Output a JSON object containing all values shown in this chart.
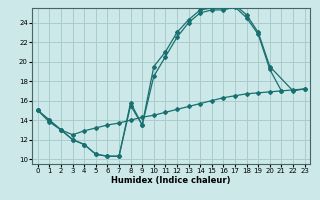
{
  "xlabel": "Humidex (Indice chaleur)",
  "bg_color": "#cce8e8",
  "grid_color": "#aacccc",
  "line_color": "#1a7070",
  "xlim": [
    -0.5,
    23.5
  ],
  "ylim": [
    9.5,
    25.5
  ],
  "xticks": [
    0,
    1,
    2,
    3,
    4,
    5,
    6,
    7,
    8,
    9,
    10,
    11,
    12,
    13,
    14,
    15,
    16,
    17,
    18,
    19,
    20,
    21,
    22,
    23
  ],
  "yticks": [
    10,
    12,
    14,
    16,
    18,
    20,
    22,
    24
  ],
  "series": [
    {
      "x": [
        0,
        1,
        2,
        3,
        4,
        5,
        6,
        7,
        8,
        9,
        10,
        11,
        12,
        13,
        14,
        15,
        16,
        17,
        18,
        19,
        20,
        22,
        23
      ],
      "y": [
        15,
        14,
        13,
        12,
        11.5,
        10.5,
        10.3,
        10.3,
        15.5,
        13.5,
        19.5,
        21.0,
        23.0,
        24.3,
        25.3,
        25.5,
        25.5,
        25.8,
        24.8,
        23.0,
        19.5,
        17.0,
        17.2
      ]
    },
    {
      "x": [
        0,
        1,
        2,
        3,
        4,
        5,
        6,
        7,
        8,
        9,
        10,
        11,
        12,
        13,
        14,
        15,
        16,
        17,
        18,
        19,
        20,
        21
      ],
      "y": [
        15,
        14,
        13,
        12,
        11.5,
        10.5,
        10.3,
        10.3,
        15.8,
        13.5,
        18.5,
        20.5,
        22.5,
        24.0,
        25.0,
        25.3,
        25.3,
        25.6,
        24.5,
        22.8,
        19.2,
        17.0
      ]
    },
    {
      "x": [
        0,
        1,
        2,
        3,
        4,
        5,
        6,
        7,
        8,
        9,
        10,
        11,
        12,
        13,
        14,
        15,
        16,
        17,
        18,
        19,
        20,
        21,
        22,
        23
      ],
      "y": [
        15,
        13.8,
        13.0,
        12.5,
        12.9,
        13.2,
        13.5,
        13.7,
        14.0,
        14.3,
        14.5,
        14.8,
        15.1,
        15.4,
        15.7,
        16.0,
        16.3,
        16.5,
        16.7,
        16.8,
        16.9,
        17.0,
        17.1,
        17.2
      ]
    }
  ]
}
